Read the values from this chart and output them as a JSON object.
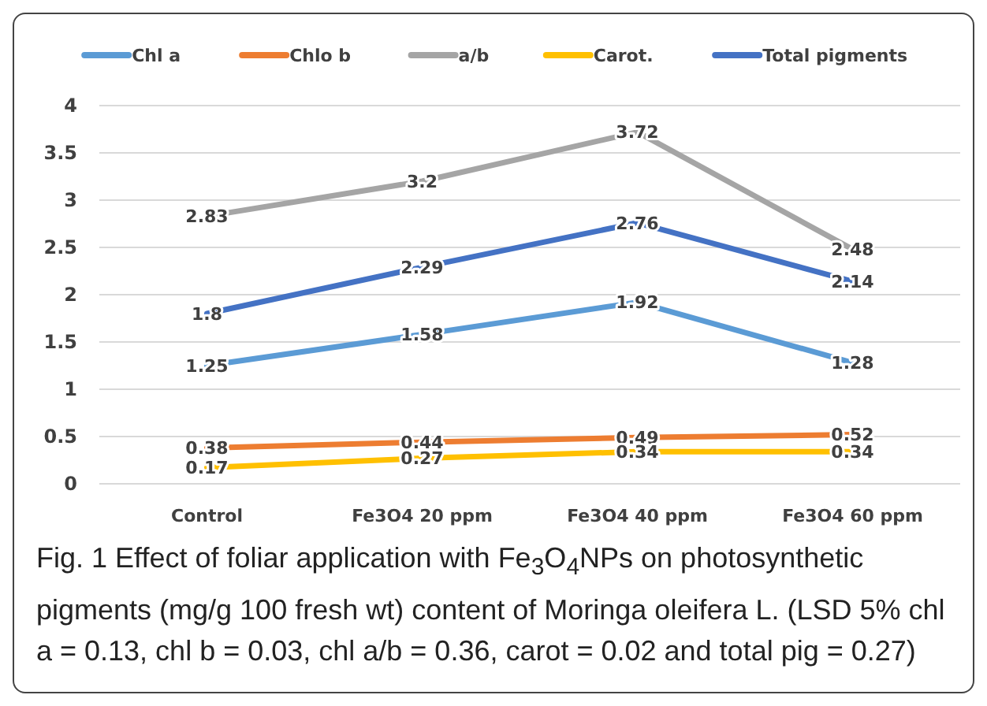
{
  "chart_data": {
    "type": "line",
    "categories": [
      "Control",
      "Fe3O4 20 ppm",
      "Fe3O4 40  ppm",
      "Fe3O4 60 ppm"
    ],
    "series": [
      {
        "name": "Chl a",
        "color": "#5b9bd5",
        "values": [
          1.25,
          1.58,
          1.92,
          1.28
        ]
      },
      {
        "name": "Chlo b",
        "color": "#ed7d31",
        "values": [
          0.38,
          0.44,
          0.49,
          0.52
        ]
      },
      {
        "name": "a/b",
        "color": "#a5a5a5",
        "values": [
          2.83,
          3.2,
          3.72,
          2.48
        ]
      },
      {
        "name": "Carot.",
        "color": "#ffc000",
        "values": [
          0.17,
          0.27,
          0.34,
          0.34
        ]
      },
      {
        "name": "Total pigments",
        "color": "#4472c4",
        "values": [
          1.8,
          2.29,
          2.76,
          2.14
        ]
      }
    ],
    "ylim": [
      0,
      4
    ],
    "yticks": [
      0,
      0.5,
      1,
      1.5,
      2,
      2.5,
      3,
      3.5,
      4
    ],
    "grid": "y",
    "legend": "top",
    "data_labels": true,
    "marker": "none",
    "line_style": "solid",
    "annotations": [
      "Fig. 1  Effect of foliar application with Fe$_{3}$O$_{4}$NPs on photosynthetic pigments (mg/g 100 fresh wt) content of Moringa oleifera L. (LSD 5% chl a = 0.13, chl b = 0.03, chl a/b = 0.36, carot = 0.02 and total pig = 0.27)"
    ]
  }
}
